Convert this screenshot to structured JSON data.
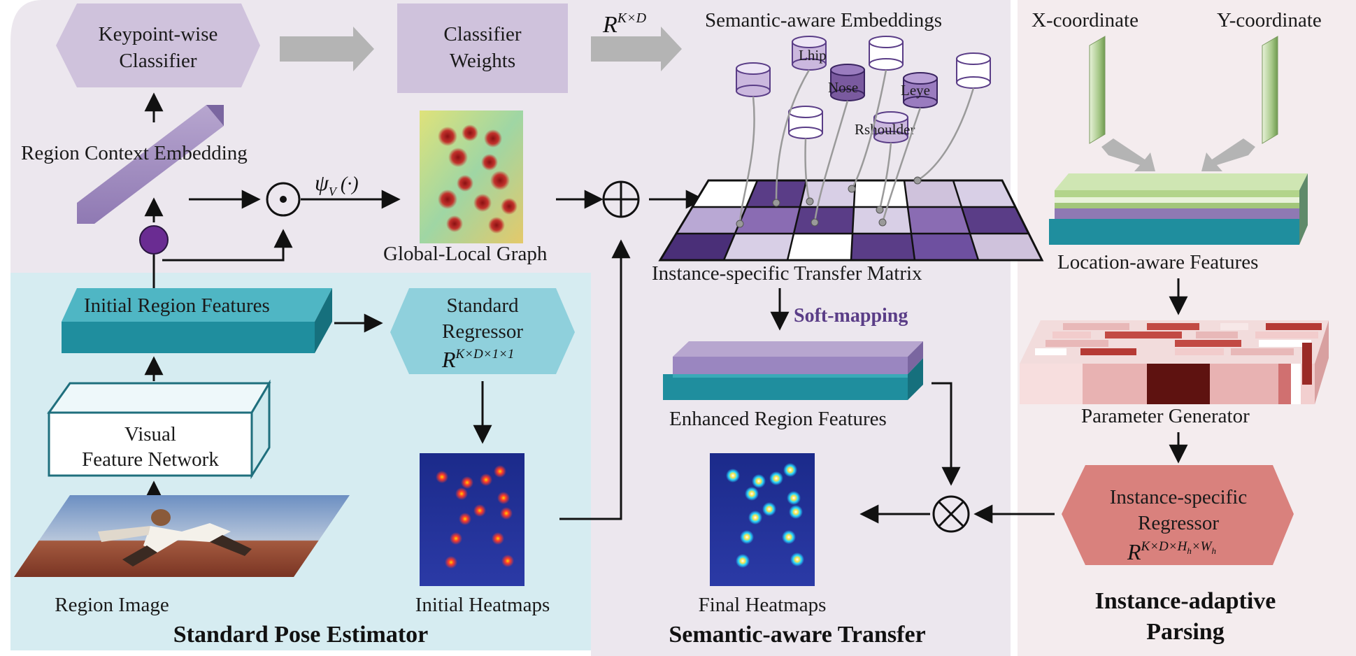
{
  "panels": {
    "standard_pose_estimator": "Standard Pose Estimator",
    "semantic_aware_transfer": "Semantic-aware Transfer",
    "instance_adaptive_parsing_line1": "Instance-adaptive",
    "instance_adaptive_parsing_line2": "Parsing"
  },
  "labels": {
    "keypoint_classifier_1": "Keypoint-wise",
    "keypoint_classifier_2": "Classifier",
    "classifier_weights_1": "Classifier",
    "classifier_weights_2": "Weights",
    "semantic_embeddings": "Semantic-aware Embeddings",
    "region_context_embedding": "Region Context Embedding",
    "global_local_graph": "Global-Local Graph",
    "transfer_matrix": "Instance-specific Transfer Matrix",
    "soft_mapping": "Soft-mapping",
    "initial_region_features": "Initial Region Features",
    "standard_regressor_1": "Standard",
    "standard_regressor_2": "Regressor",
    "visual_feature_network_1": "Visual",
    "visual_feature_network_2": "Feature Network",
    "enhanced_region_features": "Enhanced Region Features",
    "region_image": "Region Image",
    "initial_heatmaps": "Initial Heatmaps",
    "final_heatmaps": "Final Heatmaps",
    "x_coordinate": "X-coordinate",
    "y_coordinate": "Y-coordinate",
    "location_aware_features": "Location-aware Features",
    "parameter_generator": "Parameter Generator",
    "instance_regressor_1": "Instance-specific",
    "instance_regressor_2": "Regressor"
  },
  "keypoints": {
    "lhip": "Lhip",
    "nose": "Nose",
    "leye": "Leye",
    "rshoulder": "Rshoulder"
  },
  "math": {
    "r": "R",
    "kd": "K×D",
    "kd11": "K×D×1×1",
    "kdhw": "K×D×H",
    "h": "h",
    "x": "×W",
    "w": "h",
    "psi": "ψ",
    "psi_sub": "V",
    "psi_arg": "(·)"
  },
  "colors": {
    "purple_panel": "#ece7ee",
    "cyan_panel": "#d6ecf1",
    "pink_panel": "#f4ecee",
    "lavender_box": "#cfc2dc",
    "teal": "#1f8e9e",
    "purple_dark": "#5a3d87"
  }
}
